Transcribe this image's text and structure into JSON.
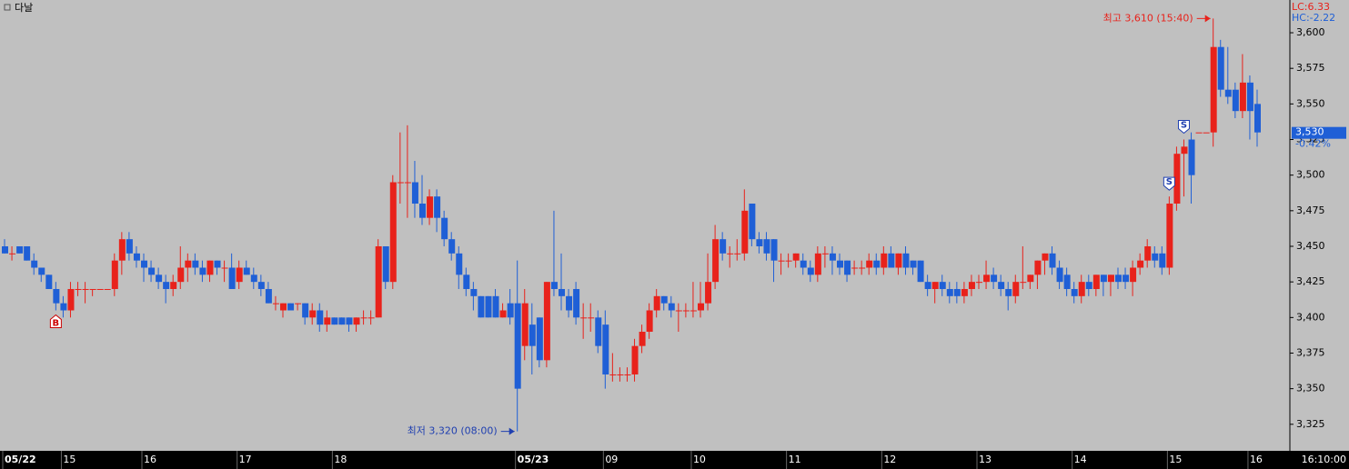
{
  "chart_data": {
    "type": "candlestick",
    "title": "다날",
    "categories": [
      "05/22",
      null,
      null,
      null,
      null,
      null,
      null,
      null,
      "15",
      null,
      null,
      null,
      null,
      null,
      null,
      null,
      null,
      null,
      null,
      "16",
      null,
      null,
      null,
      null,
      null,
      null,
      null,
      null,
      null,
      null,
      null,
      null,
      "17",
      null,
      null,
      null,
      null,
      null,
      null,
      null,
      null,
      null,
      null,
      null,
      null,
      "18",
      null,
      null,
      null,
      null,
      null,
      null,
      null,
      null,
      null,
      null,
      null,
      null,
      null,
      null,
      null,
      null,
      null,
      null,
      null,
      null,
      null,
      null,
      null,
      null,
      "05/23",
      null,
      null,
      null,
      null,
      null,
      null,
      null,
      null,
      null,
      null,
      null,
      "09",
      null,
      null,
      null,
      null,
      null,
      null,
      null,
      null,
      null,
      null,
      null,
      "10",
      null,
      null,
      null,
      null,
      null,
      null,
      null,
      null,
      null,
      null,
      null,
      null,
      "11",
      null,
      null,
      null,
      null,
      null,
      null,
      null,
      null,
      null,
      null,
      null,
      null,
      "12",
      null,
      null,
      null,
      null,
      null,
      null,
      null,
      null,
      null,
      null,
      null,
      null,
      "13",
      null,
      null,
      null,
      null,
      null,
      null,
      null,
      null,
      null,
      null,
      null,
      null,
      "14",
      null,
      null,
      null,
      null,
      null,
      null,
      null,
      null,
      null,
      null,
      null,
      null,
      "15",
      null,
      null,
      null,
      null,
      null,
      null,
      null,
      null,
      null,
      null,
      "16",
      null
    ],
    "open": [
      3450,
      3445,
      3450,
      3450,
      3440,
      3435,
      3430,
      3420,
      3410,
      3405,
      3420,
      3420,
      3420,
      3420,
      3420,
      3420,
      3440,
      3455,
      3445,
      3440,
      3435,
      3430,
      3425,
      3420,
      3425,
      3435,
      3440,
      3435,
      3430,
      3440,
      3435,
      3435,
      3425,
      3435,
      3430,
      3425,
      3420,
      3410,
      3405,
      3410,
      3410,
      3410,
      3400,
      3405,
      3395,
      3400,
      3400,
      3400,
      3395,
      3400,
      3400,
      3400,
      3450,
      3425,
      3495,
      3495,
      3495,
      3480,
      3470,
      3485,
      3470,
      3455,
      3445,
      3430,
      3420,
      3415,
      3415,
      3415,
      3400,
      3410,
      3410,
      3380,
      3395,
      3400,
      3370,
      3425,
      3420,
      3415,
      3420,
      3400,
      3400,
      3400,
      3395,
      3360,
      3360,
      3360,
      3360,
      3380,
      3390,
      3405,
      3415,
      3410,
      3405,
      3405,
      3405,
      3405,
      3410,
      3425,
      3455,
      3445,
      3445,
      3445,
      3480,
      3455,
      3455,
      3455,
      3440,
      3440,
      3440,
      3440,
      3435,
      3430,
      3445,
      3445,
      3440,
      3440,
      3435,
      3435,
      3435,
      3440,
      3435,
      3445,
      3435,
      3445,
      3440,
      3440,
      3425,
      3420,
      3425,
      3420,
      3420,
      3415,
      3420,
      3425,
      3425,
      3430,
      3425,
      3420,
      3415,
      3425,
      3425,
      3430,
      3440,
      3445,
      3435,
      3430,
      3420,
      3415,
      3425,
      3420,
      3430,
      3425,
      3430,
      3430,
      3425,
      3435,
      3440,
      3445,
      3445,
      3435,
      3480,
      3515,
      3525,
      3530,
      3530,
      3530,
      3590,
      3560,
      3560,
      3545,
      3565,
      3550
    ],
    "high": [
      3455,
      3450,
      3450,
      3450,
      3445,
      3435,
      3430,
      3425,
      3415,
      3425,
      3425,
      3425,
      3420,
      3420,
      3420,
      3445,
      3460,
      3460,
      3450,
      3445,
      3440,
      3435,
      3430,
      3430,
      3450,
      3445,
      3445,
      3440,
      3440,
      3440,
      3440,
      3445,
      3440,
      3440,
      3435,
      3430,
      3425,
      3415,
      3410,
      3410,
      3410,
      3410,
      3410,
      3410,
      3405,
      3400,
      3400,
      3400,
      3400,
      3405,
      3405,
      3455,
      3450,
      3500,
      3530,
      3535,
      3510,
      3500,
      3490,
      3490,
      3475,
      3460,
      3450,
      3435,
      3425,
      3415,
      3415,
      3420,
      3410,
      3420,
      3440,
      3420,
      3410,
      3400,
      3425,
      3475,
      3445,
      3420,
      3425,
      3410,
      3410,
      3405,
      3405,
      3375,
      3365,
      3365,
      3385,
      3395,
      3410,
      3420,
      3415,
      3415,
      3410,
      3410,
      3425,
      3425,
      3445,
      3465,
      3460,
      3450,
      3455,
      3490,
      3480,
      3460,
      3460,
      3455,
      3445,
      3445,
      3445,
      3445,
      3440,
      3450,
      3450,
      3450,
      3445,
      3440,
      3440,
      3440,
      3445,
      3445,
      3450,
      3450,
      3445,
      3450,
      3440,
      3440,
      3430,
      3425,
      3430,
      3425,
      3425,
      3425,
      3430,
      3430,
      3440,
      3435,
      3430,
      3425,
      3430,
      3450,
      3430,
      3440,
      3445,
      3450,
      3440,
      3435,
      3425,
      3430,
      3430,
      3430,
      3430,
      3430,
      3435,
      3435,
      3440,
      3445,
      3455,
      3450,
      3450,
      3485,
      3520,
      3525,
      3530,
      3530,
      3530,
      3610,
      3595,
      3590,
      3565,
      3585,
      3570,
      3560
    ],
    "low": [
      3445,
      3440,
      3445,
      3440,
      3430,
      3425,
      3420,
      3405,
      3400,
      3400,
      3415,
      3410,
      3415,
      3420,
      3420,
      3415,
      3430,
      3440,
      3435,
      3425,
      3425,
      3420,
      3410,
      3415,
      3420,
      3425,
      3430,
      3425,
      3425,
      3430,
      3425,
      3420,
      3420,
      3430,
      3420,
      3415,
      3410,
      3405,
      3400,
      3405,
      3405,
      3395,
      3395,
      3390,
      3390,
      3395,
      3395,
      3390,
      3390,
      3395,
      3395,
      3400,
      3420,
      3420,
      3480,
      3470,
      3470,
      3465,
      3465,
      3460,
      3450,
      3440,
      3420,
      3415,
      3405,
      3400,
      3400,
      3400,
      3400,
      3395,
      3320,
      3370,
      3360,
      3365,
      3365,
      3415,
      3405,
      3400,
      3395,
      3385,
      3390,
      3375,
      3350,
      3355,
      3355,
      3355,
      3355,
      3375,
      3385,
      3400,
      3405,
      3400,
      3390,
      3400,
      3400,
      3400,
      3405,
      3420,
      3440,
      3435,
      3440,
      3440,
      3450,
      3445,
      3440,
      3425,
      3430,
      3435,
      3435,
      3430,
      3425,
      3425,
      3435,
      3430,
      3430,
      3425,
      3430,
      3430,
      3430,
      3430,
      3430,
      3435,
      3430,
      3430,
      3430,
      3425,
      3415,
      3410,
      3415,
      3410,
      3410,
      3410,
      3415,
      3420,
      3420,
      3420,
      3415,
      3405,
      3410,
      3420,
      3420,
      3420,
      3430,
      3430,
      3420,
      3415,
      3410,
      3410,
      3415,
      3415,
      3415,
      3415,
      3420,
      3420,
      3415,
      3430,
      3435,
      3435,
      3430,
      3430,
      3475,
      3485,
      3480,
      3530,
      3530,
      3520,
      3555,
      3550,
      3540,
      3540,
      3525,
      3520
    ],
    "close": [
      3445,
      3445,
      3445,
      3440,
      3435,
      3430,
      3420,
      3410,
      3405,
      3420,
      3420,
      3420,
      3420,
      3420,
      3420,
      3440,
      3455,
      3445,
      3440,
      3435,
      3430,
      3425,
      3420,
      3425,
      3435,
      3440,
      3435,
      3430,
      3440,
      3435,
      3435,
      3420,
      3435,
      3430,
      3425,
      3420,
      3410,
      3410,
      3410,
      3405,
      3410,
      3400,
      3405,
      3395,
      3400,
      3395,
      3395,
      3395,
      3400,
      3400,
      3400,
      3450,
      3425,
      3495,
      3495,
      3495,
      3480,
      3470,
      3485,
      3470,
      3455,
      3445,
      3430,
      3420,
      3415,
      3400,
      3400,
      3400,
      3405,
      3400,
      3350,
      3410,
      3380,
      3370,
      3425,
      3420,
      3415,
      3405,
      3400,
      3400,
      3400,
      3380,
      3360,
      3360,
      3360,
      3360,
      3380,
      3390,
      3405,
      3415,
      3410,
      3405,
      3405,
      3405,
      3405,
      3410,
      3425,
      3455,
      3445,
      3445,
      3445,
      3475,
      3455,
      3450,
      3445,
      3440,
      3440,
      3440,
      3445,
      3435,
      3430,
      3445,
      3445,
      3440,
      3435,
      3430,
      3435,
      3435,
      3440,
      3435,
      3445,
      3435,
      3445,
      3435,
      3435,
      3425,
      3420,
      3425,
      3420,
      3415,
      3415,
      3420,
      3425,
      3425,
      3430,
      3425,
      3420,
      3415,
      3425,
      3425,
      3430,
      3440,
      3445,
      3435,
      3425,
      3420,
      3415,
      3425,
      3420,
      3430,
      3425,
      3430,
      3425,
      3425,
      3435,
      3440,
      3450,
      3440,
      3435,
      3480,
      3515,
      3520,
      3500,
      3530,
      3530,
      3590,
      3560,
      3555,
      3545,
      3565,
      3545,
      3530
    ],
    "up_color": "#e8221b",
    "down_color": "#1f5fd6",
    "ylim": [
      3307,
      3623
    ],
    "yticks": [
      {
        "value": 3325,
        "label": "3,325"
      },
      {
        "value": 3350,
        "label": "3,350"
      },
      {
        "value": 3375,
        "label": "3,375"
      },
      {
        "value": 3400,
        "label": "3,400"
      },
      {
        "value": 3425,
        "label": "3,425"
      },
      {
        "value": 3450,
        "label": "3,450"
      },
      {
        "value": 3475,
        "label": "3,475"
      },
      {
        "value": 3500,
        "label": "3,500"
      },
      {
        "value": 3525,
        "label": "3,525"
      },
      {
        "value": 3550,
        "label": "3,550"
      },
      {
        "value": 3575,
        "label": "3,575"
      },
      {
        "value": 3600,
        "label": "3,600"
      }
    ],
    "grid": false,
    "high_note": {
      "text": "최고 3,610 (15:40)",
      "value": 3610,
      "index": 165
    },
    "low_note": {
      "text": "최저 3,320 (08:00)",
      "value": 3320,
      "index": 70
    },
    "signals": [
      {
        "label": "B",
        "index": 7
      },
      {
        "label": "S",
        "index": 159
      },
      {
        "label": "S",
        "index": 161
      }
    ],
    "lc": "LC:6.33",
    "hc": "HC:-2.22",
    "last": {
      "value": 3530,
      "label": "3,530"
    },
    "change": {
      "value": -0.42,
      "label": "-0.42%"
    },
    "time": "16:10:00"
  }
}
